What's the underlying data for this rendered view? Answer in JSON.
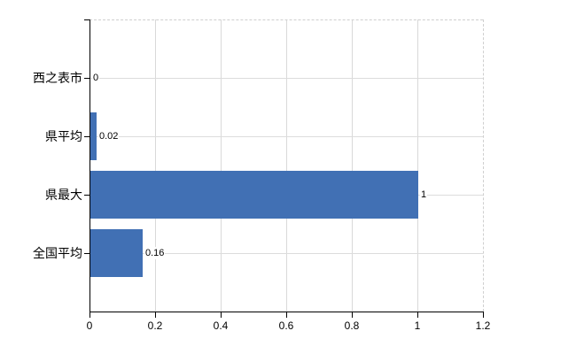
{
  "chart_data": {
    "type": "bar",
    "orientation": "horizontal",
    "title": "",
    "xlabel": "",
    "ylabel": "",
    "categories": [
      "西之表市",
      "県平均",
      "県最大",
      "全国平均"
    ],
    "values": [
      0,
      0.02,
      1,
      0.16
    ],
    "value_labels": [
      "0",
      "0.02",
      "1",
      "0.16"
    ],
    "xlim": [
      0,
      1.2
    ],
    "x_ticks": [
      0,
      0.2,
      0.4,
      0.6,
      0.8,
      1,
      1.2
    ],
    "x_tick_labels": [
      "0",
      "0.2",
      "0.4",
      "0.6",
      "0.8",
      "1",
      "1.2"
    ],
    "grid": true,
    "legend": false,
    "colors": {
      "bar": "#4170b4",
      "grid": "#d9d9d9",
      "boundary": "#cfcfcf",
      "axis": "#000000",
      "text": "#000000",
      "background": "#ffffff"
    }
  }
}
